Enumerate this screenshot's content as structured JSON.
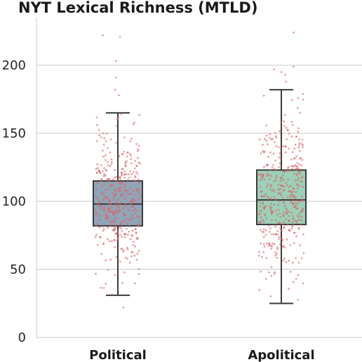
{
  "chart_data": {
    "type": "box",
    "title": "NYT Lexical Richness (MTLD)",
    "xlabel": "",
    "ylabel": "",
    "ylim": [
      0,
      235
    ],
    "yticks": [
      0,
      50,
      100,
      150,
      200
    ],
    "grid": true,
    "categories": [
      "Political",
      "Apolitical"
    ],
    "colors": [
      "#8fa6b8",
      "#9bd1b8"
    ],
    "point_color": "#d9666a",
    "boxes": [
      {
        "name": "Political",
        "whisker_low": 31,
        "q1": 82,
        "median": 98,
        "q3": 115,
        "whisker_high": 165,
        "outliers": [
          22,
          178,
          182,
          191,
          203,
          221,
          222
        ]
      },
      {
        "name": "Apolitical",
        "whisker_low": 25,
        "q1": 83,
        "median": 101,
        "q3": 123,
        "whisker_high": 182,
        "outliers": [
          188,
          193,
          195,
          197,
          199,
          224
        ]
      }
    ],
    "points_per_group": 420
  }
}
